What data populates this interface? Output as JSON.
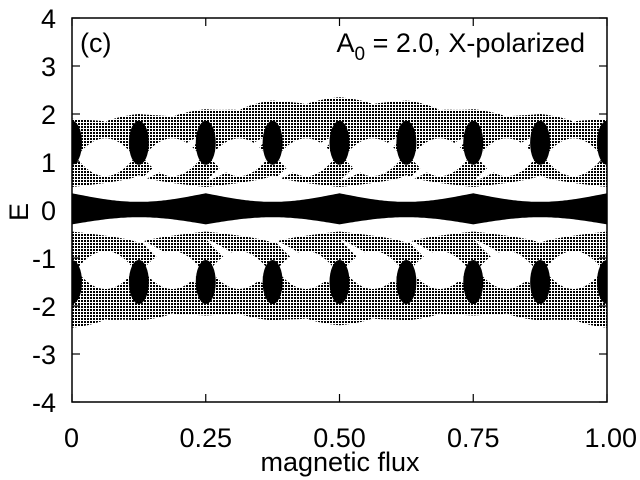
{
  "chart_data": {
    "type": "scatter",
    "title": "",
    "panel_label": "(c)",
    "annotation": {
      "symbol": "A",
      "subscript": "0",
      "rest": " = 2.0, X-polarized"
    },
    "xlabel": "magnetic flux",
    "ylabel": "E",
    "xlim": [
      0,
      1.0
    ],
    "ylim": [
      -4,
      4
    ],
    "x_ticks": [
      {
        "value": 0,
        "label": "0"
      },
      {
        "value": 0.25,
        "label": "0.25"
      },
      {
        "value": 0.5,
        "label": "0.50"
      },
      {
        "value": 0.75,
        "label": "0.75"
      },
      {
        "value": 1.0,
        "label": "1.00"
      }
    ],
    "y_ticks": [
      {
        "value": 4,
        "label": "4"
      },
      {
        "value": 3,
        "label": "3"
      },
      {
        "value": 2,
        "label": "2"
      },
      {
        "value": 1,
        "label": "1"
      },
      {
        "value": 0,
        "label": "0"
      },
      {
        "value": -1,
        "label": "-1"
      },
      {
        "value": -2,
        "label": "-2"
      },
      {
        "value": -3,
        "label": "-3"
      },
      {
        "value": -4,
        "label": "-4"
      }
    ],
    "grid": false,
    "legend": false,
    "series": [
      {
        "marker": "dots",
        "color": "#000000",
        "description_values": {
          "band_top_edge": [
            [
              0,
              1.9
            ],
            [
              0.125,
              2.0
            ],
            [
              0.25,
              2.1
            ],
            [
              0.375,
              2.28
            ],
            [
              0.5,
              2.35
            ],
            [
              0.625,
              2.28
            ],
            [
              0.75,
              2.1
            ],
            [
              0.875,
              2.0
            ],
            [
              1.0,
              1.9
            ]
          ],
          "band_bottom_edge": [
            [
              0,
              -2.45
            ],
            [
              0.125,
              -2.3
            ],
            [
              0.25,
              -2.2
            ],
            [
              0.375,
              -2.3
            ],
            [
              0.5,
              -2.4
            ],
            [
              0.625,
              -2.3
            ],
            [
              0.75,
              -2.2
            ],
            [
              0.875,
              -2.3
            ],
            [
              1.0,
              -2.45
            ]
          ],
          "gap_near_zero": [
            [
              0,
              0.45
            ],
            [
              0.25,
              0.5
            ],
            [
              0.5,
              0.35
            ],
            [
              0.75,
              0.5
            ],
            [
              1.0,
              0.45
            ]
          ]
        }
      }
    ]
  }
}
